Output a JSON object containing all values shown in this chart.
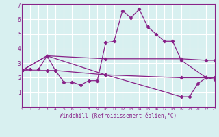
{
  "xlabel": "Windchill (Refroidissement éolien,°C)",
  "background_color": "#d8f0f0",
  "line_color": "#882288",
  "grid_color": "#ffffff",
  "xmin": 0,
  "xmax": 23,
  "ymin": 0,
  "ymax": 7,
  "yticks": [
    1,
    2,
    3,
    4,
    5,
    6,
    7
  ],
  "xticks": [
    0,
    1,
    2,
    3,
    4,
    5,
    6,
    7,
    8,
    9,
    10,
    11,
    12,
    13,
    14,
    15,
    16,
    17,
    18,
    19,
    20,
    21,
    22,
    23
  ],
  "series": [
    {
      "x": [
        0,
        1,
        2,
        3,
        4,
        5,
        6,
        7,
        8,
        9,
        10,
        11,
        12,
        13,
        14,
        15,
        16,
        17,
        18,
        19,
        22,
        23
      ],
      "y": [
        2.5,
        2.6,
        2.6,
        3.5,
        2.5,
        1.7,
        1.7,
        1.5,
        1.8,
        1.8,
        4.4,
        4.5,
        6.6,
        6.1,
        6.7,
        5.5,
        5.0,
        4.5,
        4.5,
        3.2,
        2.0,
        1.9
      ]
    },
    {
      "x": [
        0,
        3,
        10,
        19,
        22,
        23
      ],
      "y": [
        2.5,
        3.5,
        3.3,
        3.3,
        3.2,
        3.2
      ]
    },
    {
      "x": [
        0,
        3,
        10,
        19,
        22,
        23
      ],
      "y": [
        2.5,
        3.5,
        2.2,
        2.0,
        2.0,
        2.0
      ]
    },
    {
      "x": [
        0,
        3,
        4,
        10,
        19,
        20,
        21,
        22,
        23
      ],
      "y": [
        2.5,
        2.5,
        2.5,
        2.2,
        0.7,
        0.7,
        1.6,
        2.0,
        2.0
      ]
    }
  ]
}
